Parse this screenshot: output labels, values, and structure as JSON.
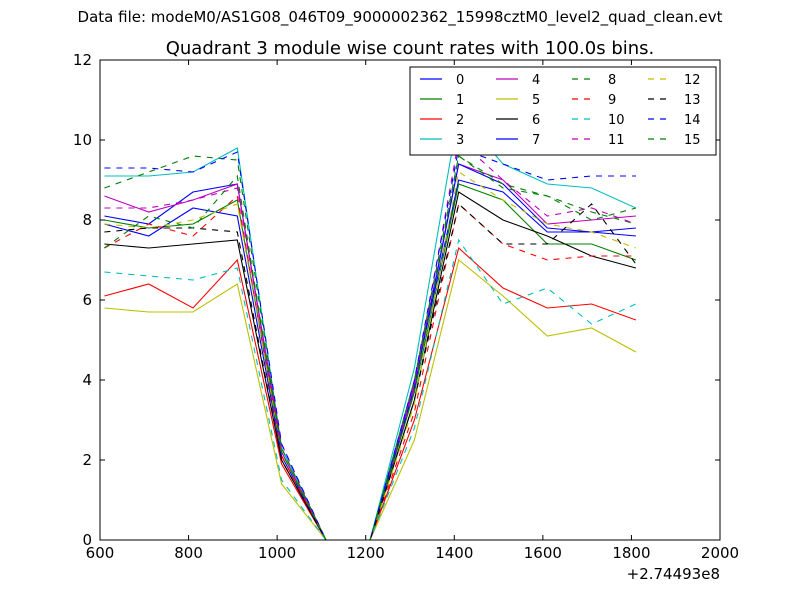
{
  "header": {
    "suptitle": "Data file: modeM0/AS1G08_046T09_9000002362_15998cztM0_level2_quad_clean.evt"
  },
  "chart_data": {
    "type": "line",
    "title": "Quadrant 3 module wise count rates with 100.0s bins.",
    "xlabel": "",
    "ylabel": "",
    "xlim": [
      600,
      2000
    ],
    "ylim": [
      0,
      12
    ],
    "x_offset_label": "+2.74493e8",
    "xticks": [
      600,
      800,
      1000,
      1200,
      1400,
      1600,
      1800,
      2000
    ],
    "yticks": [
      0,
      2,
      4,
      6,
      8,
      10,
      12
    ],
    "grid": false,
    "legend": {
      "placement": "top-right",
      "columns": 4
    },
    "x": [
      610,
      710,
      810,
      910,
      1010,
      1110,
      1210,
      1310,
      1410,
      1510,
      1610,
      1710,
      1810
    ],
    "series": [
      {
        "name": "0",
        "color": "#0000ff",
        "dash": "solid",
        "values": [
          8.1,
          7.9,
          8.7,
          8.9,
          2.3,
          0,
          0,
          3.9,
          9.0,
          8.7,
          7.7,
          7.7,
          7.6
        ]
      },
      {
        "name": "1",
        "color": "#008000",
        "dash": "solid",
        "values": [
          8.0,
          7.8,
          7.9,
          8.5,
          2.2,
          0,
          0,
          3.7,
          8.9,
          8.5,
          7.4,
          7.4,
          7.0
        ]
      },
      {
        "name": "2",
        "color": "#ff0000",
        "dash": "solid",
        "values": [
          6.1,
          6.4,
          5.8,
          7.0,
          1.9,
          0,
          0,
          3.0,
          7.3,
          6.3,
          5.8,
          5.9,
          5.5
        ]
      },
      {
        "name": "3",
        "color": "#00bfbf",
        "dash": "solid",
        "values": [
          9.1,
          9.1,
          9.2,
          9.8,
          2.3,
          0,
          0,
          4.3,
          10.7,
          9.4,
          8.9,
          8.8,
          8.3
        ]
      },
      {
        "name": "4",
        "color": "#bf00bf",
        "dash": "solid",
        "values": [
          8.6,
          8.2,
          8.5,
          8.9,
          2.2,
          0,
          0,
          3.9,
          9.4,
          9.0,
          7.9,
          8.0,
          8.1
        ]
      },
      {
        "name": "5",
        "color": "#bfbf00",
        "dash": "solid",
        "values": [
          5.8,
          5.7,
          5.7,
          6.4,
          1.4,
          0,
          0,
          2.5,
          7.0,
          6.1,
          5.1,
          5.3,
          4.7
        ]
      },
      {
        "name": "6",
        "color": "#000000",
        "dash": "solid",
        "values": [
          7.4,
          7.3,
          7.4,
          7.5,
          2.0,
          0,
          0,
          3.5,
          8.7,
          8.0,
          7.6,
          7.1,
          6.8
        ]
      },
      {
        "name": "7",
        "color": "#0000ff",
        "dash": "solid",
        "values": [
          7.9,
          7.6,
          8.3,
          8.1,
          2.1,
          0,
          0,
          3.8,
          9.4,
          8.9,
          7.8,
          7.7,
          7.8
        ]
      },
      {
        "name": "8",
        "color": "#008000",
        "dash": "dashed",
        "values": [
          8.8,
          9.2,
          9.6,
          9.5,
          2.3,
          0,
          0,
          4.0,
          9.6,
          8.8,
          8.6,
          8.2,
          7.9
        ]
      },
      {
        "name": "9",
        "color": "#ff0000",
        "dash": "dashed",
        "values": [
          7.3,
          7.9,
          7.6,
          8.6,
          2.1,
          0,
          0,
          3.2,
          8.4,
          7.4,
          7.0,
          7.1,
          7.1
        ]
      },
      {
        "name": "10",
        "color": "#00bfbf",
        "dash": "dashed",
        "values": [
          6.7,
          6.6,
          6.5,
          6.8,
          1.5,
          0,
          0,
          2.8,
          7.5,
          5.9,
          6.3,
          5.4,
          5.9
        ]
      },
      {
        "name": "11",
        "color": "#bf00bf",
        "dash": "dashed",
        "values": [
          8.3,
          8.3,
          8.5,
          8.8,
          2.4,
          0,
          0,
          3.8,
          10.0,
          9.0,
          8.1,
          8.3,
          7.9
        ]
      },
      {
        "name": "12",
        "color": "#bfbf00",
        "dash": "dashed",
        "values": [
          7.9,
          7.8,
          8.0,
          8.4,
          2.2,
          0,
          0,
          3.4,
          9.2,
          8.5,
          7.9,
          7.7,
          7.3
        ]
      },
      {
        "name": "13",
        "color": "#000000",
        "dash": "dashed",
        "values": [
          7.7,
          7.8,
          7.8,
          7.7,
          2.0,
          0,
          0,
          3.5,
          8.4,
          7.4,
          7.4,
          8.4,
          6.9
        ]
      },
      {
        "name": "14",
        "color": "#0000ff",
        "dash": "dashed",
        "values": [
          9.3,
          9.3,
          9.2,
          9.7,
          2.4,
          0,
          0,
          4.0,
          9.8,
          9.4,
          9.0,
          9.1,
          9.1
        ]
      },
      {
        "name": "15",
        "color": "#008000",
        "dash": "dashed",
        "values": [
          7.3,
          8.1,
          7.8,
          9.1,
          2.2,
          0,
          0,
          3.7,
          9.6,
          8.9,
          8.6,
          8.0,
          8.3
        ]
      }
    ]
  }
}
